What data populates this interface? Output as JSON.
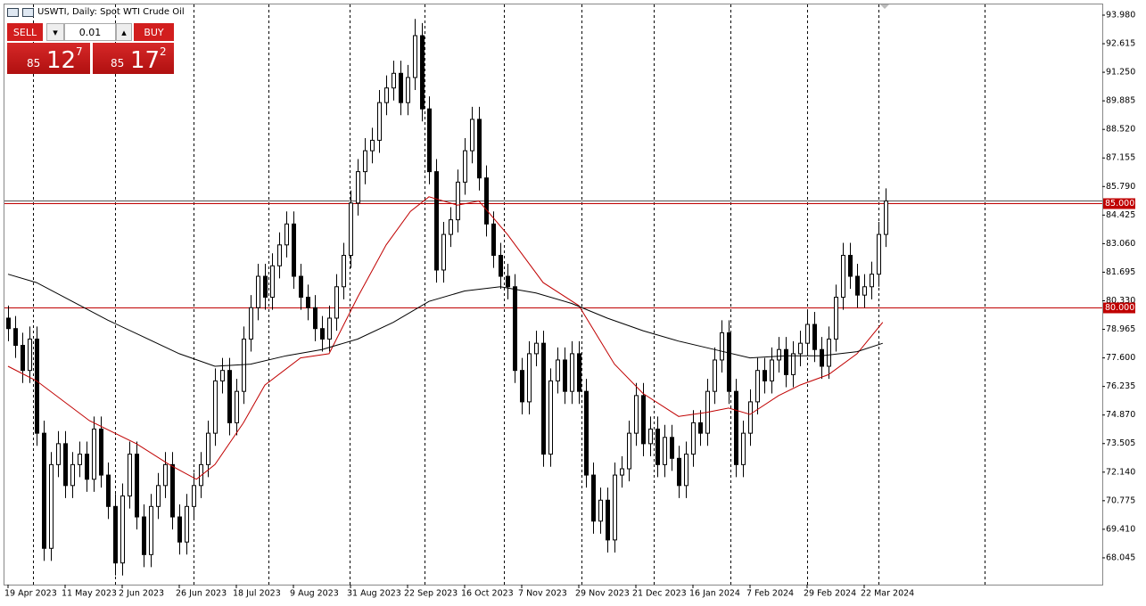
{
  "header": {
    "symbol": "USWTI, Daily:  Spot WTI Crude Oil"
  },
  "trade": {
    "sell": "SELL",
    "buy": "BUY",
    "lot": "0.01",
    "bid": {
      "big": "85",
      "main": "12",
      "small": "7"
    },
    "ask": {
      "big": "85",
      "main": "17",
      "small": "2"
    }
  },
  "chart_data": {
    "type": "candlestick",
    "ylim": [
      66.765,
      94.491
    ],
    "xlim": [
      -0.5,
      153.375
    ],
    "yticks": [
      {
        "value": 93.98,
        "label": "93.980"
      },
      92.615,
      {
        "value": 91.25,
        "label": "91.250"
      },
      89.885,
      {
        "value": 88.52,
        "label": "88.520"
      },
      87.155,
      {
        "value": 85.79,
        "label": "85.790"
      },
      84.425,
      {
        "value": 83.06,
        "label": "83.060"
      },
      81.695,
      {
        "value": 80.33,
        "label": "80.330"
      },
      78.965,
      {
        "value": 77.6,
        "label": "77.600"
      },
      76.235,
      {
        "value": 74.87,
        "label": "74.870"
      },
      73.505,
      {
        "value": 72.14,
        "label": "72.140"
      },
      70.775,
      {
        "value": 69.41,
        "label": "69.410"
      },
      68.045
    ],
    "xticks": [
      {
        "value": 0,
        "label": "19 Apr 2023"
      },
      {
        "value": 8,
        "label": "11 May 2023"
      },
      {
        "value": 16,
        "label": "2 Jun 2023"
      },
      {
        "value": 24,
        "label": "26 Jun 2023"
      },
      {
        "value": 32,
        "label": "18 Jul 2023"
      },
      {
        "value": 40,
        "label": "9 Aug 2023"
      },
      {
        "value": 48,
        "label": "31 Aug 2023"
      },
      {
        "value": 56,
        "label": "22 Sep 2023"
      },
      {
        "value": 64,
        "label": "16 Oct 2023"
      },
      {
        "value": 72,
        "label": "7 Nov 2023"
      },
      {
        "value": 80,
        "label": "29 Nov 2023"
      },
      {
        "value": 88,
        "label": "21 Dec 2023"
      },
      {
        "value": 96,
        "label": "16 Jan 2024"
      },
      {
        "value": 104,
        "label": "7 Feb 2024"
      },
      {
        "value": 112,
        "label": "29 Feb 2024"
      },
      {
        "value": 120,
        "label": "22 Mar 2024"
      }
    ],
    "xgrid": [
      3.5,
      15,
      26,
      36.5,
      47.9,
      58.4,
      69.5,
      80.4,
      90.5,
      101.25,
      112,
      122,
      136.9
    ],
    "up_color": "#ffffff",
    "down_color": "#000000",
    "edge_color": "#000000",
    "candles": [
      [
        79.5,
        80.1,
        78.4,
        79.0
      ],
      [
        79.0,
        79.6,
        77.6,
        78.2
      ],
      [
        78.2,
        78.8,
        76.4,
        77.0
      ],
      [
        77.0,
        79.1,
        76.4,
        78.5
      ],
      [
        78.5,
        79.1,
        73.4,
        74.0
      ],
      [
        74.0,
        74.6,
        67.9,
        68.5
      ],
      [
        68.5,
        73.1,
        67.9,
        72.5
      ],
      [
        72.5,
        74.1,
        71.9,
        73.5
      ],
      [
        73.5,
        74.1,
        70.9,
        71.5
      ],
      [
        71.5,
        73.1,
        70.9,
        72.5
      ],
      [
        72.5,
        73.6,
        71.9,
        73.0
      ],
      [
        73.0,
        73.6,
        71.2,
        71.8
      ],
      [
        71.8,
        74.8,
        71.2,
        74.2
      ],
      [
        74.2,
        74.8,
        71.4,
        72.0
      ],
      [
        72.0,
        72.6,
        69.9,
        70.5
      ],
      [
        70.5,
        71.1,
        67.2,
        67.8
      ],
      [
        67.8,
        71.6,
        67.2,
        71.0
      ],
      [
        71.0,
        73.6,
        70.4,
        73.0
      ],
      [
        73.0,
        73.6,
        69.4,
        70.0
      ],
      [
        70.0,
        70.6,
        67.6,
        68.2
      ],
      [
        68.2,
        71.1,
        67.6,
        70.5
      ],
      [
        70.5,
        72.1,
        69.9,
        71.5
      ],
      [
        71.5,
        73.1,
        70.9,
        72.5
      ],
      [
        72.5,
        73.1,
        69.4,
        70.0
      ],
      [
        70.0,
        70.6,
        68.2,
        68.8
      ],
      [
        68.8,
        71.1,
        68.2,
        70.5
      ],
      [
        70.5,
        72.1,
        69.9,
        71.5
      ],
      [
        71.5,
        73.1,
        70.9,
        72.5
      ],
      [
        72.5,
        74.6,
        71.9,
        74.0
      ],
      [
        74.0,
        77.1,
        73.4,
        76.5
      ],
      [
        76.5,
        77.6,
        75.9,
        77.0
      ],
      [
        77.0,
        77.6,
        73.9,
        74.5
      ],
      [
        74.5,
        76.6,
        73.9,
        76.0
      ],
      [
        76.0,
        79.1,
        75.4,
        78.5
      ],
      [
        78.5,
        80.6,
        77.9,
        80.0
      ],
      [
        80.0,
        82.1,
        79.4,
        81.5
      ],
      [
        81.5,
        82.1,
        79.9,
        80.5
      ],
      [
        80.5,
        82.6,
        79.9,
        82.0
      ],
      [
        82.0,
        83.6,
        81.4,
        83.0
      ],
      [
        83.0,
        84.6,
        82.4,
        84.0
      ],
      [
        84.0,
        84.6,
        80.9,
        81.5
      ],
      [
        81.5,
        82.1,
        79.9,
        80.5
      ],
      [
        80.5,
        81.1,
        79.4,
        80.0
      ],
      [
        80.0,
        80.6,
        78.4,
        79.0
      ],
      [
        79.0,
        79.6,
        77.9,
        78.5
      ],
      [
        78.5,
        80.1,
        77.9,
        79.5
      ],
      [
        79.5,
        81.6,
        78.9,
        81.0
      ],
      [
        81.0,
        83.1,
        80.4,
        82.5
      ],
      [
        82.5,
        85.6,
        81.9,
        85.0
      ],
      [
        85.0,
        87.1,
        84.4,
        86.5
      ],
      [
        86.5,
        88.1,
        85.9,
        87.5
      ],
      [
        87.5,
        88.6,
        86.9,
        88.0
      ],
      [
        88.0,
        90.4,
        87.4,
        89.8
      ],
      [
        89.8,
        91.1,
        89.2,
        90.5
      ],
      [
        90.5,
        91.8,
        89.9,
        91.2
      ],
      [
        91.2,
        91.8,
        89.2,
        89.8
      ],
      [
        89.8,
        91.6,
        89.2,
        91.0
      ],
      [
        91.0,
        93.8,
        90.4,
        93.0
      ],
      [
        93.0,
        93.6,
        88.9,
        89.5
      ],
      [
        89.5,
        90.1,
        85.9,
        86.5
      ],
      [
        86.5,
        87.1,
        81.2,
        81.8
      ],
      [
        81.8,
        84.1,
        81.2,
        83.5
      ],
      [
        83.5,
        84.8,
        82.9,
        84.2
      ],
      [
        84.2,
        86.6,
        83.6,
        86.0
      ],
      [
        86.0,
        88.1,
        85.4,
        87.5
      ],
      [
        87.5,
        89.6,
        86.9,
        89.0
      ],
      [
        89.0,
        89.6,
        85.6,
        86.2
      ],
      [
        86.2,
        86.8,
        83.4,
        84.0
      ],
      [
        84.0,
        84.6,
        81.9,
        82.5
      ],
      [
        82.5,
        83.1,
        80.9,
        81.5
      ],
      [
        81.5,
        82.1,
        80.4,
        81.0
      ],
      [
        81.0,
        81.6,
        76.4,
        77.0
      ],
      [
        77.0,
        77.6,
        74.9,
        75.5
      ],
      [
        75.5,
        78.4,
        74.9,
        77.8
      ],
      [
        77.8,
        78.9,
        77.2,
        78.3
      ],
      [
        78.3,
        78.9,
        72.4,
        73.0
      ],
      [
        73.0,
        77.1,
        72.4,
        76.5
      ],
      [
        76.5,
        78.1,
        75.9,
        77.5
      ],
      [
        77.5,
        78.1,
        75.4,
        76.0
      ],
      [
        76.0,
        78.4,
        75.4,
        77.8
      ],
      [
        77.8,
        78.4,
        75.4,
        76.0
      ],
      [
        76.0,
        76.6,
        71.4,
        72.0
      ],
      [
        72.0,
        72.6,
        69.2,
        69.8
      ],
      [
        69.8,
        71.4,
        69.2,
        70.8
      ],
      [
        70.8,
        71.4,
        68.3,
        68.9
      ],
      [
        68.9,
        72.6,
        68.3,
        72.0
      ],
      [
        72.0,
        72.9,
        71.4,
        72.3
      ],
      [
        72.3,
        74.6,
        71.7,
        74.0
      ],
      [
        74.0,
        76.4,
        73.4,
        75.8
      ],
      [
        75.8,
        76.4,
        72.9,
        73.5
      ],
      [
        73.5,
        74.8,
        72.9,
        74.2
      ],
      [
        74.2,
        74.8,
        71.9,
        72.5
      ],
      [
        72.5,
        74.4,
        71.9,
        73.8
      ],
      [
        73.8,
        74.4,
        72.2,
        72.8
      ],
      [
        72.8,
        73.4,
        70.9,
        71.5
      ],
      [
        71.5,
        73.6,
        70.9,
        73.0
      ],
      [
        73.0,
        75.1,
        72.4,
        74.5
      ],
      [
        74.5,
        75.1,
        73.4,
        74.0
      ],
      [
        74.0,
        76.6,
        73.4,
        76.0
      ],
      [
        76.0,
        78.1,
        75.4,
        77.5
      ],
      [
        77.5,
        79.4,
        76.9,
        78.8
      ],
      [
        78.8,
        79.4,
        75.4,
        76.0
      ],
      [
        76.0,
        76.6,
        71.9,
        72.5
      ],
      [
        72.5,
        74.6,
        71.9,
        74.0
      ],
      [
        74.0,
        76.1,
        73.4,
        75.5
      ],
      [
        75.5,
        77.6,
        74.9,
        77.0
      ],
      [
        77.0,
        77.6,
        75.9,
        76.5
      ],
      [
        76.5,
        78.1,
        75.9,
        77.5
      ],
      [
        77.5,
        78.6,
        76.9,
        78.0
      ],
      [
        78.0,
        78.6,
        76.2,
        76.8
      ],
      [
        76.8,
        78.4,
        76.2,
        77.8
      ],
      [
        77.8,
        78.9,
        77.2,
        78.3
      ],
      [
        78.3,
        79.8,
        77.7,
        79.2
      ],
      [
        79.2,
        79.8,
        77.4,
        78.0
      ],
      [
        78.0,
        78.6,
        76.6,
        77.2
      ],
      [
        77.2,
        79.1,
        76.6,
        78.5
      ],
      [
        78.5,
        81.1,
        77.9,
        80.5
      ],
      [
        80.5,
        83.1,
        79.9,
        82.5
      ],
      [
        82.5,
        83.1,
        80.9,
        81.5
      ],
      [
        81.5,
        82.1,
        80.0,
        80.6
      ],
      [
        80.6,
        81.6,
        80.0,
        81.0
      ],
      [
        81.0,
        82.2,
        80.4,
        81.6
      ],
      [
        81.6,
        84.1,
        81.0,
        83.5
      ],
      [
        83.5,
        85.7,
        82.9,
        85.1
      ]
    ],
    "series": [
      {
        "color": "#c00000",
        "x": [
          0,
          4,
          11.4,
          18,
          22.6,
          26.4,
          29,
          33,
          36,
          41,
          45,
          49,
          53,
          56.4,
          59,
          63,
          66,
          70,
          75,
          80,
          85,
          89,
          94,
          98,
          101,
          104,
          108,
          111,
          115,
          119,
          122.6
        ],
        "values": [
          77.2,
          76.5,
          74.6,
          73.5,
          72.5,
          71.8,
          72.5,
          74.5,
          76.3,
          77.6,
          77.8,
          80.5,
          83.0,
          84.6,
          85.3,
          84.9,
          85.1,
          83.5,
          81.2,
          80.1,
          77.3,
          75.9,
          74.8,
          75.0,
          75.2,
          74.9,
          75.8,
          76.3,
          76.8,
          77.8,
          79.3
        ]
      },
      {
        "color": "#000000",
        "x": [
          0,
          4,
          9,
          14,
          19,
          24,
          29,
          34,
          39,
          44,
          49,
          54,
          59,
          64,
          69,
          74,
          79,
          84,
          89,
          94,
          99,
          104,
          109,
          114,
          119,
          122.6
        ],
        "values": [
          81.6,
          81.2,
          80.3,
          79.4,
          78.6,
          77.8,
          77.2,
          77.3,
          77.7,
          78.0,
          78.5,
          79.3,
          80.3,
          80.8,
          81.0,
          80.7,
          80.2,
          79.5,
          78.9,
          78.4,
          78.0,
          77.6,
          77.7,
          77.7,
          77.9,
          78.3
        ]
      }
    ],
    "price_line": 85.127,
    "levels": [
      {
        "value": 85,
        "label": "85.000",
        "color": "#c00000"
      },
      {
        "value": 80,
        "label": "80.000",
        "color": "#c00000"
      }
    ]
  }
}
